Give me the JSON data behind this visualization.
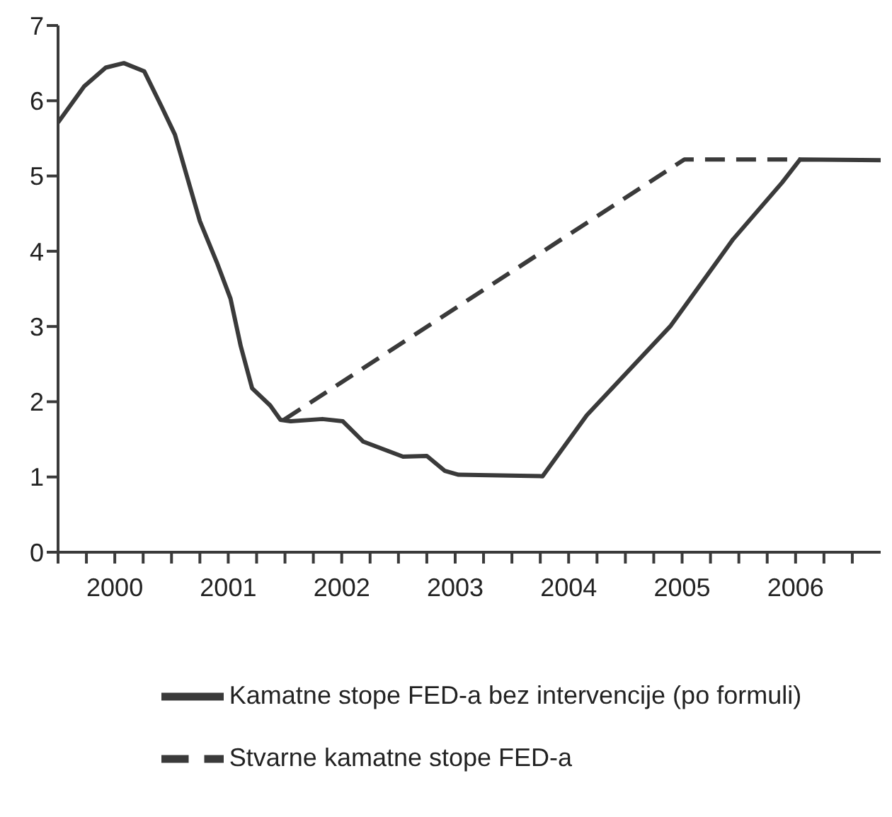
{
  "chart_data": {
    "type": "line",
    "xlim": [
      2000,
      2007.25
    ],
    "xticks": [
      {
        "value": 2000,
        "label": null
      },
      {
        "value": 2000.25,
        "label": null
      },
      {
        "value": 2000.5,
        "label": "2000"
      },
      {
        "value": 2000.75,
        "label": null
      },
      {
        "value": 2001,
        "label": null
      },
      {
        "value": 2001.25,
        "label": null
      },
      {
        "value": 2001.5,
        "label": "2001"
      },
      {
        "value": 2001.75,
        "label": null
      },
      {
        "value": 2002,
        "label": null
      },
      {
        "value": 2002.25,
        "label": null
      },
      {
        "value": 2002.5,
        "label": "2002"
      },
      {
        "value": 2002.75,
        "label": null
      },
      {
        "value": 2003,
        "label": null
      },
      {
        "value": 2003.25,
        "label": null
      },
      {
        "value": 2003.5,
        "label": "2003"
      },
      {
        "value": 2003.75,
        "label": null
      },
      {
        "value": 2004,
        "label": null
      },
      {
        "value": 2004.25,
        "label": null
      },
      {
        "value": 2004.5,
        "label": "2004"
      },
      {
        "value": 2004.75,
        "label": null
      },
      {
        "value": 2005,
        "label": null
      },
      {
        "value": 2005.25,
        "label": null
      },
      {
        "value": 2005.5,
        "label": "2005"
      },
      {
        "value": 2005.75,
        "label": null
      },
      {
        "value": 2006,
        "label": null
      },
      {
        "value": 2006.25,
        "label": null
      },
      {
        "value": 2006.5,
        "label": "2006"
      },
      {
        "value": 2006.75,
        "label": null
      },
      {
        "value": 2007,
        "label": null
      }
    ],
    "ylim": [
      0,
      7
    ],
    "yticks": [
      0,
      1,
      2,
      3,
      4,
      5,
      6,
      7
    ],
    "grid": false,
    "legend": "bottom",
    "marker": "none",
    "series": [
      {
        "name": "Stvarne kamatne stope FED-a",
        "color": "#3a3a3a",
        "line_style": "dashed",
        "x": [
          2001.99,
          2005.52,
          2006.54
        ],
        "values": [
          1.76,
          5.22,
          5.22
        ]
      },
      {
        "name": "Kamatne stope FED-a bez intervencije (po formuli)",
        "color": "#3a3a3a",
        "line_style": "solid",
        "x": [
          2000,
          2000.23,
          2000.42,
          2000.58,
          2000.76,
          2000.91,
          2001.03,
          2001.16,
          2001.25,
          2001.4,
          2001.52,
          2001.61,
          2001.71,
          2001.87,
          2001.96,
          2002.05,
          2002.33,
          2002.51,
          2002.69,
          2003.04,
          2003.25,
          2003.41,
          2003.53,
          2004.27,
          2004.66,
          2005.4,
          2005.95,
          2006.38,
          2006.54,
          2007.25
        ],
        "values": [
          5.71,
          6.19,
          6.44,
          6.5,
          6.39,
          5.93,
          5.55,
          4.87,
          4.4,
          3.85,
          3.37,
          2.74,
          2.18,
          1.95,
          1.76,
          1.74,
          1.77,
          1.74,
          1.47,
          1.27,
          1.28,
          1.08,
          1.03,
          1.01,
          1.82,
          3.01,
          4.16,
          4.91,
          5.22,
          5.21
        ]
      }
    ]
  }
}
